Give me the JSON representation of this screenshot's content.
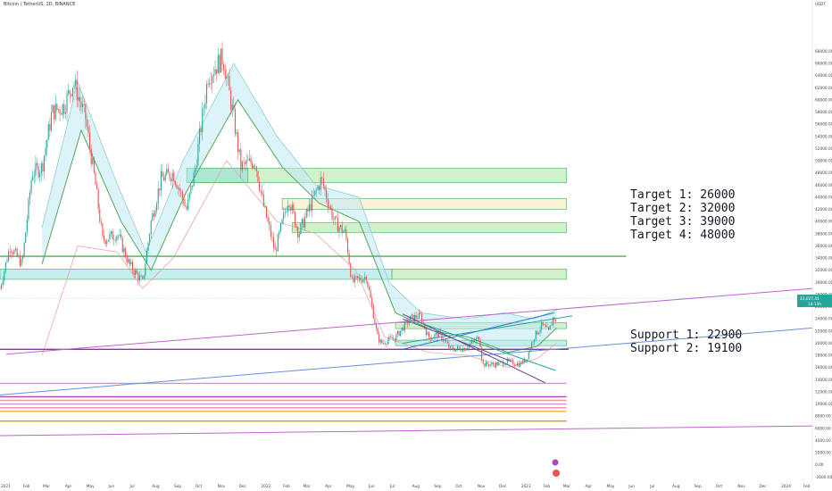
{
  "header": {
    "title": "Bitcoin / TetherUS, 2D, BINANCE"
  },
  "axes": {
    "y_unit": "USDT",
    "y_ticks": [
      -2000,
      0,
      2000,
      4000,
      6000,
      8000,
      10000,
      12000,
      14000,
      16000,
      18000,
      20000,
      22000,
      24000,
      26000,
      28000,
      30000,
      32000,
      34000,
      36000,
      38000,
      40000,
      42000,
      44000,
      46000,
      48000,
      50000,
      52000,
      54000,
      56000,
      58000,
      60000,
      62000,
      64000,
      66000,
      68000
    ],
    "x_ticks": [
      "2021",
      "Feb",
      "Mar",
      "Apr",
      "May",
      "Jun",
      "Jul",
      "Aug",
      "Sep",
      "Oct",
      "Nov",
      "Dec",
      "2022",
      "Feb",
      "Mar",
      "Apr",
      "May",
      "Jun",
      "Jul",
      "Aug",
      "Sep",
      "Oct",
      "Nov",
      "Dec",
      "2023",
      "Feb",
      "Mar",
      "Apr",
      "May",
      "Jun",
      "Jul",
      "Aug",
      "Sep",
      "Oct",
      "Nov",
      "Dec",
      "2024",
      "Feb"
    ],
    "price_badge": "23,027.41",
    "price_badge_sub": "1d 13h"
  },
  "annotations": {
    "targets": [
      "Target 1: 26000",
      "Target 2: 32000",
      "Target 3: 39000",
      "Target 4: 48000"
    ],
    "supports": [
      "Support  1: 22900",
      "Support  2: 19100"
    ]
  },
  "chart_data": {
    "type": "candlestick",
    "title": "Bitcoin / TetherUS, 2D, BINANCE",
    "xlim": [
      "2021-01-01",
      "2024-02-15"
    ],
    "ylim": [
      -2000,
      70000
    ],
    "grid": false,
    "close_series": [
      [
        "2021-01-01",
        29000
      ],
      [
        "2021-01-15",
        36000
      ],
      [
        "2021-02-01",
        33000
      ],
      [
        "2021-02-15",
        48000
      ],
      [
        "2021-03-01",
        49000
      ],
      [
        "2021-03-15",
        58000
      ],
      [
        "2021-04-01",
        59000
      ],
      [
        "2021-04-14",
        63000
      ],
      [
        "2021-05-01",
        57000
      ],
      [
        "2021-05-15",
        46000
      ],
      [
        "2021-05-25",
        37000
      ],
      [
        "2021-06-15",
        38000
      ],
      [
        "2021-07-01",
        33000
      ],
      [
        "2021-07-20",
        30000
      ],
      [
        "2021-08-01",
        40000
      ],
      [
        "2021-08-15",
        47000
      ],
      [
        "2021-09-01",
        48000
      ],
      [
        "2021-09-20",
        42000
      ],
      [
        "2021-10-01",
        48000
      ],
      [
        "2021-10-20",
        64000
      ],
      [
        "2021-11-10",
        67000
      ],
      [
        "2021-11-25",
        57000
      ],
      [
        "2021-12-05",
        49000
      ],
      [
        "2021-12-25",
        50000
      ],
      [
        "2022-01-05",
        43000
      ],
      [
        "2022-01-22",
        35000
      ],
      [
        "2022-02-10",
        44000
      ],
      [
        "2022-02-24",
        38000
      ],
      [
        "2022-03-28",
        47000
      ],
      [
        "2022-04-15",
        40000
      ],
      [
        "2022-05-01",
        38000
      ],
      [
        "2022-05-10",
        30000
      ],
      [
        "2022-05-30",
        31000
      ],
      [
        "2022-06-15",
        21000
      ],
      [
        "2022-06-20",
        20000
      ],
      [
        "2022-07-10",
        21000
      ],
      [
        "2022-07-30",
        24000
      ],
      [
        "2022-08-14",
        24500
      ],
      [
        "2022-08-25",
        21000
      ],
      [
        "2022-09-10",
        21500
      ],
      [
        "2022-09-25",
        19000
      ],
      [
        "2022-10-15",
        19200
      ],
      [
        "2022-11-05",
        21000
      ],
      [
        "2022-11-09",
        16500
      ],
      [
        "2022-11-25",
        16500
      ],
      [
        "2022-12-15",
        17000
      ],
      [
        "2022-12-31",
        16550
      ],
      [
        "2023-01-10",
        17500
      ],
      [
        "2023-01-20",
        21000
      ],
      [
        "2023-02-01",
        23000
      ],
      [
        "2023-02-10",
        21800
      ],
      [
        "2023-02-17",
        24500
      ],
      [
        "2023-02-21",
        23027
      ]
    ],
    "bands": {
      "upper": [
        [
          "2021-03-01",
          39000
        ],
        [
          "2021-04-20",
          63000
        ],
        [
          "2021-06-15",
          46000
        ],
        [
          "2021-07-25",
          35000
        ],
        [
          "2021-09-15",
          50000
        ],
        [
          "2021-11-25",
          66000
        ],
        [
          "2022-01-25",
          54000
        ],
        [
          "2022-03-20",
          46000
        ],
        [
          "2022-05-20",
          44000
        ],
        [
          "2022-07-01",
          30000
        ],
        [
          "2022-08-15",
          25000
        ],
        [
          "2022-10-15",
          24000
        ],
        [
          "2022-12-10",
          25000
        ],
        [
          "2023-01-20",
          24000
        ],
        [
          "2023-02-21",
          25500
        ]
      ],
      "mid": [
        [
          "2021-03-01",
          33000
        ],
        [
          "2021-04-25",
          55000
        ],
        [
          "2021-06-20",
          40000
        ],
        [
          "2021-08-01",
          32000
        ],
        [
          "2021-09-20",
          45000
        ],
        [
          "2021-12-01",
          60000
        ],
        [
          "2022-02-01",
          49000
        ],
        [
          "2022-03-25",
          43000
        ],
        [
          "2022-05-20",
          40000
        ],
        [
          "2022-07-10",
          25000
        ],
        [
          "2022-09-01",
          22000
        ],
        [
          "2022-10-20",
          21000
        ],
        [
          "2022-12-15",
          18500
        ],
        [
          "2023-01-25",
          19500
        ],
        [
          "2023-02-21",
          22500
        ]
      ],
      "lower": [
        [
          "2021-03-01",
          18000
        ],
        [
          "2021-04-20",
          36000
        ],
        [
          "2021-06-15",
          35000
        ],
        [
          "2021-07-20",
          29000
        ],
        [
          "2021-09-01",
          34000
        ],
        [
          "2021-11-15",
          50000
        ],
        [
          "2022-01-25",
          40000
        ],
        [
          "2022-03-20",
          38000
        ],
        [
          "2022-05-15",
          32000
        ],
        [
          "2022-06-25",
          21000
        ],
        [
          "2022-08-25",
          18500
        ],
        [
          "2022-10-20",
          18000
        ],
        [
          "2022-12-15",
          16000
        ],
        [
          "2023-01-25",
          17500
        ],
        [
          "2023-02-21",
          20000
        ]
      ]
    },
    "zones": [
      {
        "from": "2021-01-01",
        "to": "2022-07-05",
        "y1": 30500,
        "y2": 32200,
        "color": "#7fd9e0"
      },
      {
        "from": "2022-07-05",
        "to": "2023-03-07",
        "y1": 30500,
        "y2": 32200,
        "color": "#9ede8f"
      },
      {
        "from": "2021-09-20",
        "to": "2023-03-07",
        "y1": 46400,
        "y2": 48800,
        "color": "#9ede8f"
      },
      {
        "from": "2021-09-20",
        "to": "2021-12-15",
        "y1": 46400,
        "y2": 48800,
        "color": "#7fd9e0"
      },
      {
        "from": "2022-02-01",
        "to": "2023-03-07",
        "y1": 42000,
        "y2": 43800,
        "color": "#f7e3a9"
      },
      {
        "from": "2022-02-15",
        "to": "2023-03-07",
        "y1": 38200,
        "y2": 39800,
        "color": "#9ede8f"
      },
      {
        "from": "2022-07-10",
        "to": "2023-03-07",
        "y1": 22400,
        "y2": 23400,
        "color": "#9ede8f"
      },
      {
        "from": "2022-07-10",
        "to": "2023-03-07",
        "y1": 19600,
        "y2": 20500,
        "color": "#7fd9e0"
      }
    ],
    "horizontal_lines": [
      {
        "y": 34300,
        "from": "2021-01-01",
        "to": "2023-05-30",
        "color": "#4caf50"
      },
      {
        "y": 19000,
        "from": "2021-01-01",
        "to": "2023-03-10",
        "color": "#9c27b0"
      },
      {
        "y": 13400,
        "from": "2021-01-01",
        "to": "2023-03-07",
        "color": "#ce93d8"
      },
      {
        "y": 11200,
        "from": "2021-01-01",
        "to": "2023-03-07",
        "color": "#ab47bc"
      },
      {
        "y": 10600,
        "from": "2021-01-01",
        "to": "2023-03-07",
        "color": "#ef9a9a"
      },
      {
        "y": 10000,
        "from": "2021-01-01",
        "to": "2023-03-07",
        "color": "#ce93d8"
      },
      {
        "y": 9400,
        "from": "2021-01-01",
        "to": "2023-03-07",
        "color": "#f48fb1"
      },
      {
        "y": 8800,
        "from": "2021-01-01",
        "to": "2023-03-07",
        "color": "#ffb74d"
      },
      {
        "y": 7200,
        "from": "2021-01-01",
        "to": "2023-03-07",
        "color": "#fb8c00"
      }
    ],
    "trendlines": [
      {
        "from": [
          "2021-01-10",
          18200
        ],
        "to": [
          "2024-02-15",
          29000
        ],
        "color": "#ba68c8"
      },
      {
        "from": [
          "2021-01-01",
          11500
        ],
        "to": [
          "2024-02-15",
          22500
        ],
        "color": "#6a8fd8"
      },
      {
        "from": [
          "2021-01-01",
          4800
        ],
        "to": [
          "2024-02-15",
          6400
        ],
        "color": "#ba68c8"
      },
      {
        "from": [
          "2022-07-20",
          24800
        ],
        "to": [
          "2023-02-05",
          13500
        ],
        "color": "#6a4c93"
      },
      {
        "from": [
          "2022-07-20",
          19000
        ],
        "to": [
          "2023-02-18",
          25000
        ],
        "color": "#2a7bd4"
      },
      {
        "from": [
          "2022-07-20",
          20000
        ],
        "to": [
          "2023-03-15",
          24500
        ],
        "color": "#26a69a"
      },
      {
        "from": [
          "2022-08-10",
          23500
        ],
        "to": [
          "2023-02-20",
          15500
        ],
        "color": "#26a69a"
      },
      {
        "from": [
          "2022-07-20",
          24000
        ],
        "to": [
          "2022-12-20",
          17000
        ],
        "color": "#6a4c93"
      }
    ],
    "last_price": 23027.41
  }
}
